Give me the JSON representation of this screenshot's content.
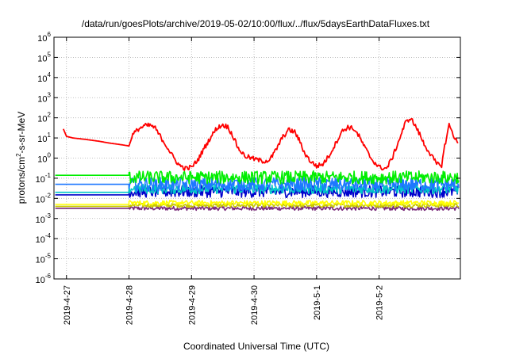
{
  "chart_data": {
    "type": "line",
    "title": "/data/run/goesPlots/archive/2019-05-02/10:00/flux/../flux/5daysEarthDataFluxes.txt",
    "xlabel": "Coordinated Universal Time (UTC)",
    "ylabel": "protons/cm²-s-sr-MeV",
    "ylabel_parts": [
      "protons/cm",
      "2",
      "-s-sr-MeV"
    ],
    "y_scale": "log",
    "ylim_exponents": [
      -6,
      6
    ],
    "y_ticks": [
      {
        "base": "10",
        "exp": "6"
      },
      {
        "base": "10",
        "exp": "5"
      },
      {
        "base": "10",
        "exp": "4"
      },
      {
        "base": "10",
        "exp": "3"
      },
      {
        "base": "10",
        "exp": "2"
      },
      {
        "base": "10",
        "exp": "1"
      },
      {
        "base": "10",
        "exp": "0"
      },
      {
        "base": "10",
        "exp": "-1"
      },
      {
        "base": "10",
        "exp": "-2"
      },
      {
        "base": "10",
        "exp": "-3"
      },
      {
        "base": "10",
        "exp": "-4"
      },
      {
        "base": "10",
        "exp": "-5"
      },
      {
        "base": "10",
        "exp": "-6"
      }
    ],
    "x_range_days": [
      "2019-04-26T23:50",
      "2019-05-02T14:00"
    ],
    "x_ticks": [
      "2019-4-27",
      "2019-4-28",
      "2019-4-29",
      "2019-4-30",
      "2019-5-1",
      "2019-5-2"
    ],
    "grid": true,
    "series": [
      {
        "color": "#ff0000",
        "note_points": "x in days since 2019-04-27 00:00, y in flux units",
        "points": [
          [
            -0.05,
            28
          ],
          [
            0.0,
            12
          ],
          [
            0.1,
            10
          ],
          [
            0.3,
            8.5
          ],
          [
            0.5,
            7
          ],
          [
            0.7,
            5.5
          ],
          [
            0.9,
            4.5
          ],
          [
            1.0,
            4.0
          ],
          [
            1.06,
            14
          ],
          [
            1.15,
            28
          ],
          [
            1.25,
            40
          ],
          [
            1.35,
            42
          ],
          [
            1.42,
            30
          ],
          [
            1.5,
            12
          ],
          [
            1.6,
            4
          ],
          [
            1.7,
            1.2
          ],
          [
            1.8,
            0.45
          ],
          [
            1.9,
            0.3
          ],
          [
            2.0,
            0.35
          ],
          [
            2.1,
            0.8
          ],
          [
            2.2,
            3
          ],
          [
            2.3,
            10
          ],
          [
            2.4,
            30
          ],
          [
            2.5,
            45
          ],
          [
            2.58,
            35
          ],
          [
            2.65,
            15
          ],
          [
            2.75,
            3
          ],
          [
            2.85,
            1.3
          ],
          [
            3.0,
            0.9
          ],
          [
            3.15,
            0.7
          ],
          [
            3.25,
            0.8
          ],
          [
            3.35,
            2.5
          ],
          [
            3.45,
            10
          ],
          [
            3.55,
            25
          ],
          [
            3.65,
            20
          ],
          [
            3.72,
            8
          ],
          [
            3.8,
            2
          ],
          [
            3.9,
            0.7
          ],
          [
            4.0,
            0.4
          ],
          [
            4.1,
            0.5
          ],
          [
            4.2,
            1.3
          ],
          [
            4.3,
            5
          ],
          [
            4.4,
            20
          ],
          [
            4.5,
            35
          ],
          [
            4.6,
            28
          ],
          [
            4.68,
            12
          ],
          [
            4.78,
            3
          ],
          [
            4.88,
            0.9
          ],
          [
            5.0,
            0.35
          ],
          [
            5.12,
            0.3
          ],
          [
            5.22,
            1.2
          ],
          [
            5.32,
            8
          ],
          [
            5.42,
            55
          ],
          [
            5.5,
            100
          ],
          [
            5.58,
            40
          ],
          [
            5.65,
            15
          ],
          [
            5.72,
            5
          ],
          [
            5.8,
            2
          ],
          [
            5.88,
            0.8
          ],
          [
            5.92,
            0.5
          ],
          [
            6.0,
            0.45
          ],
          [
            6.05,
            4
          ],
          [
            6.12,
            45
          ],
          [
            6.2,
            12
          ],
          [
            6.26,
            5
          ]
        ]
      },
      {
        "color": "#00ee00",
        "center": 0.11,
        "spread": 0.32,
        "start_level": 0.14
      },
      {
        "color": "#1e78ff",
        "center": 0.05,
        "spread": 0.35,
        "start_level": 0.05
      },
      {
        "color": "#00c8c8",
        "center": 0.03,
        "spread": 0.25,
        "start_level": 0.02
      },
      {
        "color": "#0000cc",
        "center": 0.022,
        "spread": 0.3,
        "start_level": 0.015
      },
      {
        "color": "#ffff00",
        "center": 0.006,
        "spread": 0.12,
        "start_level": 0.005
      },
      {
        "color": "#c8c800",
        "center": 0.0045,
        "spread": 0.1,
        "start_level": 0.004
      },
      {
        "color": "#7a2a7a",
        "center": 0.0032,
        "spread": 0.1,
        "start_level": 0.0032
      }
    ]
  }
}
